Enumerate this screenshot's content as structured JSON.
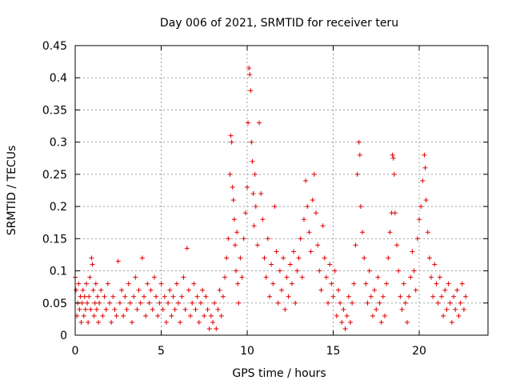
{
  "chart_data": {
    "type": "scatter",
    "title": "Day 006 of 2021, SRMTID for receiver teru",
    "xlabel": "GPS time / hours",
    "ylabel": "SRMTID / TECUs",
    "xlim": [
      0,
      24
    ],
    "ylim": [
      0,
      0.45
    ],
    "xticks": [
      0,
      5,
      10,
      15,
      20
    ],
    "xtick_labels": [
      "0",
      "5",
      "10",
      "15",
      "20"
    ],
    "yticks": [
      0,
      0.05,
      0.1,
      0.15,
      0.2,
      0.25,
      0.3,
      0.35,
      0.4,
      0.45
    ],
    "ytick_labels": [
      "0",
      "0.05",
      "0.1",
      "0.15",
      "0.2",
      "0.25",
      "0.3",
      "0.35",
      "0.4",
      "0.45"
    ],
    "grid": true,
    "marker": "plus",
    "color": "#e00000",
    "series": [
      {
        "points": [
          [
            0.0,
            0.09
          ],
          [
            0.05,
            0.07
          ],
          [
            0.1,
            0.03
          ],
          [
            0.15,
            0.05
          ],
          [
            0.2,
            0.08
          ],
          [
            0.25,
            0.04
          ],
          [
            0.3,
            0.06
          ],
          [
            0.35,
            0.02
          ],
          [
            0.4,
            0.05
          ],
          [
            0.45,
            0.07
          ],
          [
            0.5,
            0.03
          ],
          [
            0.55,
            0.06
          ],
          [
            0.6,
            0.04
          ],
          [
            0.65,
            0.08
          ],
          [
            0.7,
            0.05
          ],
          [
            0.75,
            0.02
          ],
          [
            0.8,
            0.06
          ],
          [
            0.85,
            0.09
          ],
          [
            0.9,
            0.04
          ],
          [
            0.95,
            0.12
          ],
          [
            1.0,
            0.11
          ],
          [
            1.05,
            0.07
          ],
          [
            1.1,
            0.03
          ],
          [
            1.15,
            0.05
          ],
          [
            1.2,
            0.08
          ],
          [
            1.25,
            0.04
          ],
          [
            1.3,
            0.06
          ],
          [
            1.35,
            0.02
          ],
          [
            1.4,
            0.05
          ],
          [
            1.5,
            0.07
          ],
          [
            1.6,
            0.03
          ],
          [
            1.7,
            0.06
          ],
          [
            1.8,
            0.04
          ],
          [
            1.9,
            0.08
          ],
          [
            2.0,
            0.05
          ],
          [
            2.1,
            0.02
          ],
          [
            2.2,
            0.06
          ],
          [
            2.3,
            0.04
          ],
          [
            2.4,
            0.03
          ],
          [
            2.5,
            0.115
          ],
          [
            2.6,
            0.05
          ],
          [
            2.7,
            0.07
          ],
          [
            2.8,
            0.03
          ],
          [
            2.9,
            0.06
          ],
          [
            3.0,
            0.04
          ],
          [
            3.1,
            0.08
          ],
          [
            3.2,
            0.05
          ],
          [
            3.3,
            0.02
          ],
          [
            3.4,
            0.06
          ],
          [
            3.5,
            0.09
          ],
          [
            3.6,
            0.04
          ],
          [
            3.7,
            0.07
          ],
          [
            3.8,
            0.05
          ],
          [
            3.9,
            0.12
          ],
          [
            4.0,
            0.06
          ],
          [
            4.1,
            0.03
          ],
          [
            4.2,
            0.08
          ],
          [
            4.3,
            0.05
          ],
          [
            4.4,
            0.07
          ],
          [
            4.5,
            0.04
          ],
          [
            4.6,
            0.09
          ],
          [
            4.7,
            0.06
          ],
          [
            4.8,
            0.03
          ],
          [
            4.9,
            0.05
          ],
          [
            5.0,
            0.08
          ],
          [
            5.1,
            0.04
          ],
          [
            5.2,
            0.06
          ],
          [
            5.3,
            0.02
          ],
          [
            5.4,
            0.05
          ],
          [
            5.5,
            0.07
          ],
          [
            5.6,
            0.03
          ],
          [
            5.7,
            0.06
          ],
          [
            5.8,
            0.04
          ],
          [
            5.9,
            0.08
          ],
          [
            6.0,
            0.05
          ],
          [
            6.1,
            0.02
          ],
          [
            6.2,
            0.06
          ],
          [
            6.3,
            0.09
          ],
          [
            6.4,
            0.04
          ],
          [
            6.5,
            0.135
          ],
          [
            6.6,
            0.07
          ],
          [
            6.7,
            0.03
          ],
          [
            6.8,
            0.05
          ],
          [
            6.9,
            0.08
          ],
          [
            7.0,
            0.04
          ],
          [
            7.1,
            0.06
          ],
          [
            7.2,
            0.02
          ],
          [
            7.3,
            0.05
          ],
          [
            7.4,
            0.07
          ],
          [
            7.5,
            0.03
          ],
          [
            7.6,
            0.06
          ],
          [
            7.7,
            0.04
          ],
          [
            7.8,
            0.01
          ],
          [
            7.9,
            0.03
          ],
          [
            8.0,
            0.02
          ],
          [
            8.1,
            0.05
          ],
          [
            8.2,
            0.01
          ],
          [
            8.3,
            0.04
          ],
          [
            8.4,
            0.07
          ],
          [
            8.5,
            0.03
          ],
          [
            8.6,
            0.06
          ],
          [
            8.7,
            0.09
          ],
          [
            8.8,
            0.12
          ],
          [
            8.9,
            0.15
          ],
          [
            9.0,
            0.25
          ],
          [
            9.05,
            0.31
          ],
          [
            9.1,
            0.3
          ],
          [
            9.15,
            0.23
          ],
          [
            9.2,
            0.21
          ],
          [
            9.25,
            0.18
          ],
          [
            9.3,
            0.14
          ],
          [
            9.35,
            0.1
          ],
          [
            9.4,
            0.16
          ],
          [
            9.45,
            0.08
          ],
          [
            9.5,
            0.05
          ],
          [
            9.6,
            0.12
          ],
          [
            9.7,
            0.09
          ],
          [
            9.8,
            0.15
          ],
          [
            9.9,
            0.19
          ],
          [
            10.0,
            0.23
          ],
          [
            10.05,
            0.33
          ],
          [
            10.1,
            0.415
          ],
          [
            10.15,
            0.405
          ],
          [
            10.2,
            0.38
          ],
          [
            10.25,
            0.3
          ],
          [
            10.3,
            0.27
          ],
          [
            10.35,
            0.22
          ],
          [
            10.4,
            0.17
          ],
          [
            10.45,
            0.25
          ],
          [
            10.5,
            0.2
          ],
          [
            10.6,
            0.14
          ],
          [
            10.7,
            0.33
          ],
          [
            10.8,
            0.22
          ],
          [
            10.9,
            0.18
          ],
          [
            11.0,
            0.12
          ],
          [
            11.1,
            0.09
          ],
          [
            11.2,
            0.15
          ],
          [
            11.3,
            0.06
          ],
          [
            11.4,
            0.11
          ],
          [
            11.5,
            0.08
          ],
          [
            11.6,
            0.2
          ],
          [
            11.7,
            0.13
          ],
          [
            11.8,
            0.05
          ],
          [
            11.9,
            0.1
          ],
          [
            12.0,
            0.07
          ],
          [
            12.1,
            0.12
          ],
          [
            12.2,
            0.04
          ],
          [
            12.3,
            0.09
          ],
          [
            12.4,
            0.06
          ],
          [
            12.5,
            0.11
          ],
          [
            12.6,
            0.08
          ],
          [
            12.7,
            0.13
          ],
          [
            12.8,
            0.05
          ],
          [
            12.9,
            0.1
          ],
          [
            13.0,
            0.12
          ],
          [
            13.1,
            0.15
          ],
          [
            13.2,
            0.09
          ],
          [
            13.3,
            0.18
          ],
          [
            13.4,
            0.24
          ],
          [
            13.5,
            0.2
          ],
          [
            13.6,
            0.16
          ],
          [
            13.7,
            0.13
          ],
          [
            13.8,
            0.21
          ],
          [
            13.9,
            0.25
          ],
          [
            14.0,
            0.19
          ],
          [
            14.1,
            0.14
          ],
          [
            14.2,
            0.1
          ],
          [
            14.3,
            0.07
          ],
          [
            14.4,
            0.17
          ],
          [
            14.5,
            0.12
          ],
          [
            14.6,
            0.09
          ],
          [
            14.7,
            0.05
          ],
          [
            14.8,
            0.11
          ],
          [
            14.9,
            0.08
          ],
          [
            15.0,
            0.06
          ],
          [
            15.1,
            0.1
          ],
          [
            15.2,
            0.03
          ],
          [
            15.3,
            0.07
          ],
          [
            15.4,
            0.05
          ],
          [
            15.5,
            0.02
          ],
          [
            15.6,
            0.04
          ],
          [
            15.7,
            0.01
          ],
          [
            15.8,
            0.03
          ],
          [
            15.9,
            0.06
          ],
          [
            16.0,
            0.02
          ],
          [
            16.1,
            0.05
          ],
          [
            16.2,
            0.08
          ],
          [
            16.3,
            0.14
          ],
          [
            16.4,
            0.25
          ],
          [
            16.5,
            0.3
          ],
          [
            16.55,
            0.28
          ],
          [
            16.6,
            0.2
          ],
          [
            16.7,
            0.16
          ],
          [
            16.8,
            0.12
          ],
          [
            16.9,
            0.08
          ],
          [
            17.0,
            0.05
          ],
          [
            17.1,
            0.1
          ],
          [
            17.2,
            0.06
          ],
          [
            17.3,
            0.03
          ],
          [
            17.4,
            0.07
          ],
          [
            17.5,
            0.04
          ],
          [
            17.6,
            0.09
          ],
          [
            17.7,
            0.05
          ],
          [
            17.8,
            0.02
          ],
          [
            17.9,
            0.06
          ],
          [
            18.0,
            0.03
          ],
          [
            18.1,
            0.08
          ],
          [
            18.2,
            0.12
          ],
          [
            18.3,
            0.16
          ],
          [
            18.4,
            0.19
          ],
          [
            18.45,
            0.28
          ],
          [
            18.5,
            0.275
          ],
          [
            18.55,
            0.25
          ],
          [
            18.6,
            0.19
          ],
          [
            18.7,
            0.14
          ],
          [
            18.8,
            0.1
          ],
          [
            18.9,
            0.06
          ],
          [
            19.0,
            0.04
          ],
          [
            19.1,
            0.08
          ],
          [
            19.2,
            0.05
          ],
          [
            19.3,
            0.02
          ],
          [
            19.4,
            0.06
          ],
          [
            19.5,
            0.09
          ],
          [
            19.6,
            0.13
          ],
          [
            19.7,
            0.1
          ],
          [
            19.8,
            0.07
          ],
          [
            19.9,
            0.15
          ],
          [
            20.0,
            0.18
          ],
          [
            20.1,
            0.2
          ],
          [
            20.2,
            0.24
          ],
          [
            20.3,
            0.28
          ],
          [
            20.35,
            0.26
          ],
          [
            20.4,
            0.21
          ],
          [
            20.5,
            0.16
          ],
          [
            20.6,
            0.12
          ],
          [
            20.7,
            0.09
          ],
          [
            20.8,
            0.06
          ],
          [
            20.9,
            0.11
          ],
          [
            21.0,
            0.08
          ],
          [
            21.1,
            0.05
          ],
          [
            21.2,
            0.09
          ],
          [
            21.3,
            0.06
          ],
          [
            21.4,
            0.03
          ],
          [
            21.5,
            0.07
          ],
          [
            21.6,
            0.04
          ],
          [
            21.7,
            0.08
          ],
          [
            21.8,
            0.05
          ],
          [
            21.9,
            0.02
          ],
          [
            22.0,
            0.06
          ],
          [
            22.1,
            0.04
          ],
          [
            22.2,
            0.07
          ],
          [
            22.3,
            0.03
          ],
          [
            22.4,
            0.05
          ],
          [
            22.5,
            0.08
          ],
          [
            22.6,
            0.04
          ],
          [
            22.7,
            0.06
          ]
        ]
      }
    ]
  }
}
